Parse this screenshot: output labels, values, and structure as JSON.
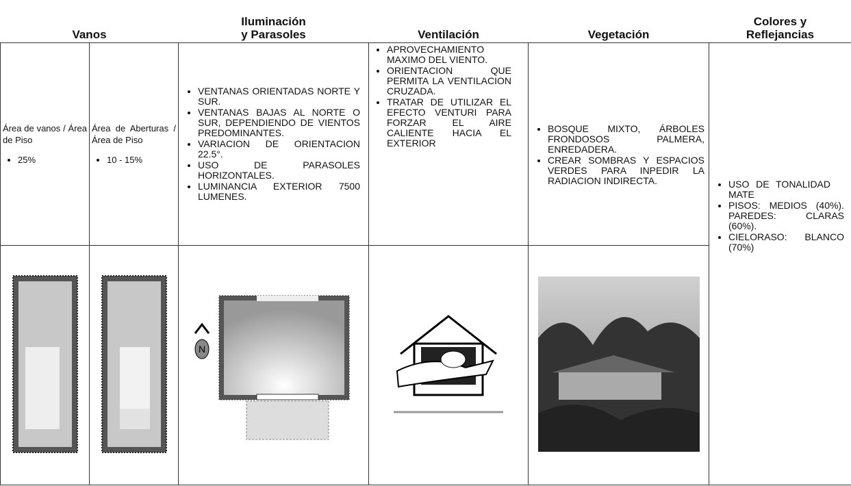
{
  "table": {
    "headers": [
      "Vanos",
      "Iluminación\ny Parasoles",
      "Ventilación",
      "Vegetación",
      "Colores y\nReflejancias"
    ],
    "vanos": {
      "text": "Área de vanos / Área de Piso",
      "bullets": [
        "25%"
      ]
    },
    "aberturas": {
      "text": "Área de Aberturas / Área de Piso",
      "bullets": [
        "10 - 15%"
      ]
    },
    "iluminacion": {
      "bullets": [
        "VENTANAS ORIENTADAS NORTE Y SUR.",
        "VENTANAS BAJAS AL NORTE O SUR, DEPENDIENDO DE VIENTOS PREDOMINANTES.",
        "VARIACION DE ORIENTACION 22.5°.",
        "USO DE PARASOLES HORIZONTALES.",
        "LUMINANCIA EXTERIOR 7500 LUMENES."
      ],
      "compass_label": "N"
    },
    "ventilacion": {
      "bullets": [
        "APROVECHAMIENTO MAXIMO DEL VIENTO.",
        "ORIENTACION QUE PERMITA LA VENTILACION CRUZADA.",
        "TRATAR DE UTILIZAR EL EFECTO VENTURI PARA FORZAR EL AIRE CALIENTE HACIA EL EXTERIOR"
      ]
    },
    "vegetacion": {
      "bullets": [
        "BOSQUE MIXTO, ÁRBOLES FRONDOSOS PALMERA, ENREDADERA.",
        "CREAR SOMBRAS Y ESPACIOS VERDES PARA INPEDIR LA RADIACION INDIRECTA."
      ]
    },
    "colores": {
      "bullets": [
        "USO DE TONALIDAD MATE",
        "PISOS: MEDIOS (40%). PAREDES: CLARAS (60%).",
        "CIELORASO: BLANCO (70%)"
      ]
    }
  }
}
